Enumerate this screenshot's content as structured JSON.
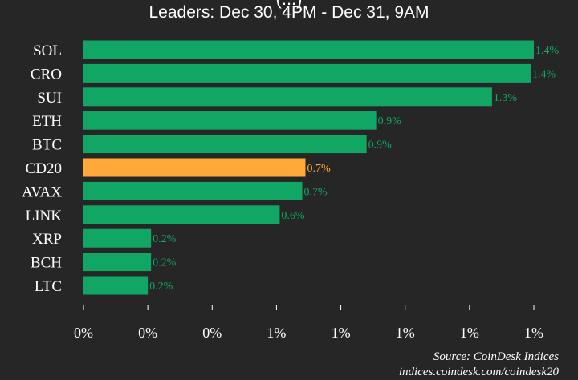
{
  "chart_data": {
    "type": "bar",
    "orientation": "horizontal",
    "title": "(...)",
    "subtitle": "Leaders: Dec 30, 4PM - Dec 31, 9AM",
    "categories": [
      "SOL",
      "CRO",
      "SUI",
      "ETH",
      "BTC",
      "CD20",
      "AVAX",
      "LINK",
      "XRP",
      "BCH",
      "LTC"
    ],
    "values": [
      1.44,
      1.39,
      1.27,
      0.91,
      0.88,
      0.69,
      0.68,
      0.61,
      0.21,
      0.21,
      0.2
    ],
    "value_labels": [
      "1.4%",
      "1.4%",
      "1.3%",
      "0.9%",
      "0.9%",
      "0.7%",
      "0.7%",
      "0.6%",
      "0.2%",
      "0.2%",
      "0.2%"
    ],
    "highlight_category": "CD20",
    "xlim": [
      0,
      1.4
    ],
    "x_ticks": [
      0,
      0.2,
      0.4,
      0.6,
      0.8,
      1.0,
      1.2,
      1.4
    ],
    "x_tick_labels": [
      "0%",
      "0%",
      "0%",
      "1%",
      "1%",
      "1%",
      "1%",
      "1%"
    ],
    "grid": false,
    "colors": {
      "bar": "#12a665",
      "highlight": "#ffa93b",
      "background": "#262626"
    }
  },
  "footer": {
    "source": "Source: CoinDesk Indices",
    "url": "indices.coindesk.com/coindesk20"
  }
}
